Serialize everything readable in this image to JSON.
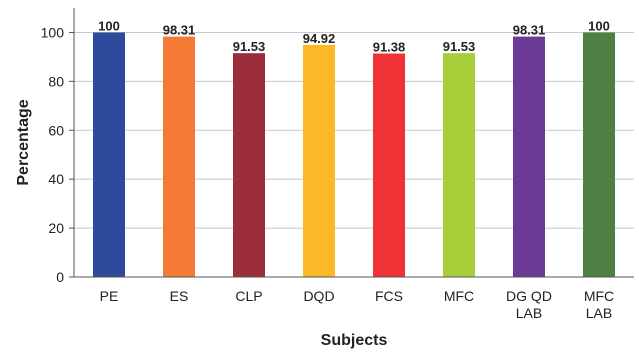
{
  "chart_data": {
    "type": "bar",
    "xlabel": "Subjects",
    "ylabel": "Percentage",
    "ylim": [
      0,
      110
    ],
    "yticks": [
      0,
      20,
      40,
      60,
      80,
      100
    ],
    "grid": true,
    "categories": [
      [
        "PE"
      ],
      [
        "ES"
      ],
      [
        "CLP"
      ],
      [
        "DQD"
      ],
      [
        "FCS"
      ],
      [
        "MFC"
      ],
      [
        "DG QD",
        "LAB"
      ],
      [
        "MFC",
        "LAB"
      ]
    ],
    "values": [
      100,
      98.31,
      91.53,
      94.92,
      91.38,
      91.53,
      98.31,
      100
    ],
    "value_labels": [
      "100",
      "98.31",
      "91.53",
      "94.92",
      "91.38",
      "91.53",
      "98.31",
      "100"
    ],
    "colors": [
      "#2E4A9C",
      "#F47B35",
      "#9B2D3A",
      "#FDB827",
      "#EE3236",
      "#A6CE39",
      "#6B3A96",
      "#4E7F43"
    ]
  }
}
